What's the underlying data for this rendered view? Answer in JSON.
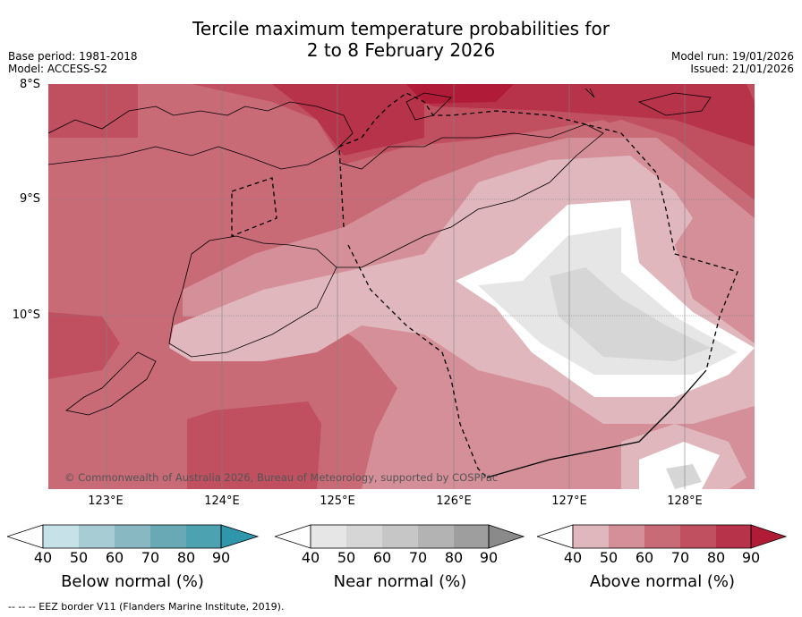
{
  "title_line1": "Tercile maximum temperature probabilities for",
  "title_line2": "2 to 8 February 2026",
  "meta": {
    "base_period": "Base period: 1981-2018",
    "model": "Model: ACCESS-S2",
    "model_run": "Model run: 19/01/2026",
    "issued": "Issued: 21/01/2026"
  },
  "axes": {
    "lat_labels": [
      "8°S",
      "9°S",
      "10°S"
    ],
    "lon_labels": [
      "123°E",
      "124°E",
      "125°E",
      "126°E",
      "127°E",
      "128°E"
    ]
  },
  "copyright": "© Commonwealth of Australia 2026, Bureau of Meteorology, supported by COSPPac",
  "colorbars": [
    {
      "title": "Below normal (%)",
      "ticks": [
        "40",
        "50",
        "60",
        "70",
        "80",
        "90"
      ],
      "colors": [
        "#ffffff",
        "#c6e2e8",
        "#a8ccd3",
        "#88b9c3",
        "#68a9b5",
        "#4da2b1",
        "#2f97ab"
      ]
    },
    {
      "title": "Near normal (%)",
      "ticks": [
        "40",
        "50",
        "60",
        "70",
        "80",
        "90"
      ],
      "colors": [
        "#ffffff",
        "#e6e6e6",
        "#d6d6d6",
        "#c6c6c6",
        "#b3b3b3",
        "#9e9e9e",
        "#8a8a8a"
      ]
    },
    {
      "title": "Above normal (%)",
      "ticks": [
        "40",
        "50",
        "60",
        "70",
        "80",
        "90"
      ],
      "colors": [
        "#ffffff",
        "#e0b7bd",
        "#d48f99",
        "#c96b77",
        "#c05060",
        "#b7334a",
        "#b01c38"
      ]
    }
  ],
  "footnote": "--  --  -- EEZ border V11 (Flanders Marine Institute, 2019)."
}
